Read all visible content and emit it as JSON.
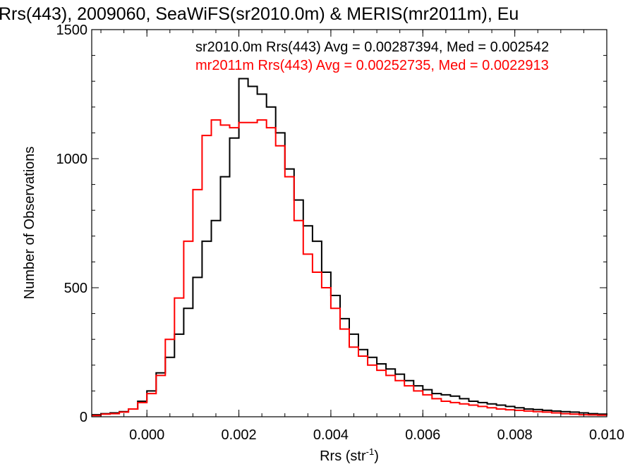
{
  "chart_data": {
    "type": "line",
    "title": "Rrs(443), 2009060, SeaWiFS(sr2010.0m) & MERIS(mr2011m), Eu",
    "xlabel": "Rrs (str",
    "xlabel_sup": "-1",
    "xlabel_close": ")",
    "ylabel": "Number of Observations",
    "xlim": [
      -0.0012,
      0.01
    ],
    "ylim": [
      0,
      1500
    ],
    "xticks": [
      0.0,
      0.002,
      0.004,
      0.006,
      0.008,
      0.01
    ],
    "xtick_labels": [
      "0.000",
      "0.002",
      "0.004",
      "0.006",
      "0.008",
      "0.010"
    ],
    "yticks": [
      0,
      500,
      1000,
      1500
    ],
    "ytick_labels": [
      "0",
      "500",
      "1000",
      "1500"
    ],
    "grid": false,
    "legend_position": "top-right",
    "series": [
      {
        "name": "sr2010.0m",
        "legend_text": "sr2010.0m Rrs(443) Avg = 0.00287394, Med = 0.002542",
        "color": "#000000",
        "x": [
          -0.0012,
          -0.001,
          -0.0008,
          -0.0006,
          -0.0004,
          -0.0002,
          0.0,
          0.0002,
          0.0004,
          0.0006,
          0.0008,
          0.001,
          0.0012,
          0.0014,
          0.0016,
          0.0018,
          0.002,
          0.0022,
          0.0024,
          0.0026,
          0.0028,
          0.003,
          0.0032,
          0.0034,
          0.0036,
          0.0038,
          0.004,
          0.0042,
          0.0044,
          0.0046,
          0.0048,
          0.005,
          0.0052,
          0.0054,
          0.0056,
          0.0058,
          0.006,
          0.0062,
          0.0064,
          0.0066,
          0.0068,
          0.007,
          0.0072,
          0.0074,
          0.0076,
          0.0078,
          0.008,
          0.0082,
          0.0084,
          0.0086,
          0.0088,
          0.009,
          0.0092,
          0.0094,
          0.0096,
          0.0098,
          0.01
        ],
        "y": [
          8,
          12,
          15,
          20,
          30,
          60,
          100,
          170,
          230,
          320,
          420,
          540,
          680,
          760,
          930,
          1080,
          1310,
          1280,
          1250,
          1200,
          1100,
          960,
          840,
          740,
          680,
          560,
          470,
          380,
          320,
          260,
          230,
          205,
          185,
          165,
          140,
          120,
          105,
          90,
          85,
          80,
          70,
          60,
          55,
          50,
          45,
          40,
          35,
          30,
          28,
          25,
          22,
          20,
          18,
          15,
          12,
          10,
          8
        ]
      },
      {
        "name": "mr2011m",
        "legend_text": "mr2011m Rrs(443) Avg = 0.00252735, Med = 0.0022913",
        "color": "#ff0000",
        "x": [
          -0.0012,
          -0.001,
          -0.0008,
          -0.0006,
          -0.0004,
          -0.0002,
          0.0,
          0.0002,
          0.0004,
          0.0006,
          0.0008,
          0.001,
          0.0012,
          0.0014,
          0.0016,
          0.0018,
          0.002,
          0.0022,
          0.0024,
          0.0026,
          0.0028,
          0.003,
          0.0032,
          0.0034,
          0.0036,
          0.0038,
          0.004,
          0.0042,
          0.0044,
          0.0046,
          0.0048,
          0.005,
          0.0052,
          0.0054,
          0.0056,
          0.0058,
          0.006,
          0.0062,
          0.0064,
          0.0066,
          0.0068,
          0.007,
          0.0072,
          0.0074,
          0.0076,
          0.0078,
          0.008,
          0.0082,
          0.0084,
          0.0086,
          0.0088,
          0.009,
          0.0092,
          0.0094,
          0.0096,
          0.0098,
          0.01
        ],
        "y": [
          5,
          10,
          12,
          18,
          30,
          55,
          90,
          160,
          300,
          460,
          680,
          880,
          1090,
          1150,
          1130,
          1120,
          1140,
          1140,
          1150,
          1120,
          1050,
          930,
          760,
          630,
          560,
          500,
          420,
          340,
          270,
          235,
          200,
          180,
          160,
          140,
          120,
          100,
          85,
          70,
          60,
          55,
          50,
          45,
          40,
          35,
          30,
          27,
          25,
          22,
          20,
          18,
          15,
          12,
          10,
          8,
          7,
          6,
          5
        ]
      }
    ]
  }
}
